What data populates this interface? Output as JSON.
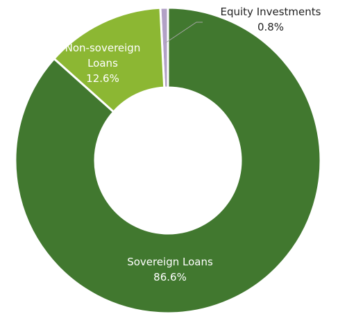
{
  "chart_data": {
    "type": "donut",
    "categories": [
      "Sovereign Loans",
      "Non-sovereign Loans",
      "Equity Investments"
    ],
    "values": [
      86.6,
      12.6,
      0.8
    ],
    "value_labels": [
      "86.6%",
      "12.6%",
      "0.8%"
    ],
    "colors": [
      "#41782f",
      "#8cb733",
      "#b2a1c6"
    ]
  }
}
